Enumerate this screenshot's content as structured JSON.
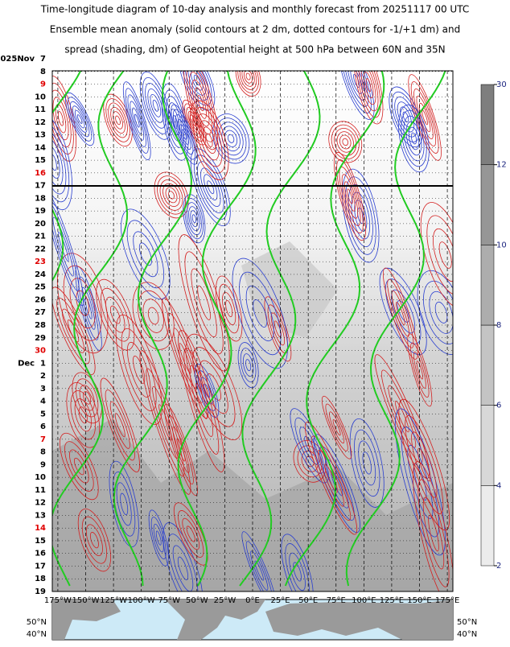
{
  "chart_data": {
    "type": "hovmoller",
    "title_lines": [
      "Time-longitude diagram of 10-day analysis and monthly forecast from 20251117 00 UTC",
      "Ensemble mean anomaly (solid contours at 2 dm, dotted contours for -1/+1 dm) and",
      "spread (shading, dm) of Geopotential height at 500 hPa between 60N and 35N"
    ],
    "rows": [
      {
        "label": "2025Nov  7",
        "color": "#000000"
      },
      {
        "label": "8",
        "color": "#000000"
      },
      {
        "label": "9",
        "color": "#e00000"
      },
      {
        "label": "10",
        "color": "#000000"
      },
      {
        "label": "11",
        "color": "#000000"
      },
      {
        "label": "12",
        "color": "#000000"
      },
      {
        "label": "13",
        "color": "#000000"
      },
      {
        "label": "14",
        "color": "#000000"
      },
      {
        "label": "15",
        "color": "#000000"
      },
      {
        "label": "16",
        "color": "#e00000"
      },
      {
        "label": "17",
        "color": "#000000"
      },
      {
        "label": "18",
        "color": "#000000"
      },
      {
        "label": "19",
        "color": "#000000"
      },
      {
        "label": "20",
        "color": "#000000"
      },
      {
        "label": "21",
        "color": "#000000"
      },
      {
        "label": "22",
        "color": "#000000"
      },
      {
        "label": "23",
        "color": "#e00000"
      },
      {
        "label": "24",
        "color": "#000000"
      },
      {
        "label": "25",
        "color": "#000000"
      },
      {
        "label": "26",
        "color": "#000000"
      },
      {
        "label": "27",
        "color": "#000000"
      },
      {
        "label": "28",
        "color": "#000000"
      },
      {
        "label": "29",
        "color": "#000000"
      },
      {
        "label": "30",
        "color": "#e00000"
      },
      {
        "label": "Dec  1",
        "color": "#000000"
      },
      {
        "label": "2",
        "color": "#000000"
      },
      {
        "label": "3",
        "color": "#000000"
      },
      {
        "label": "4",
        "color": "#000000"
      },
      {
        "label": "5",
        "color": "#000000"
      },
      {
        "label": "6",
        "color": "#000000"
      },
      {
        "label": "7",
        "color": "#e00000"
      },
      {
        "label": "8",
        "color": "#000000"
      },
      {
        "label": "9",
        "color": "#000000"
      },
      {
        "label": "10",
        "color": "#000000"
      },
      {
        "label": "11",
        "color": "#000000"
      },
      {
        "label": "12",
        "color": "#000000"
      },
      {
        "label": "13",
        "color": "#000000"
      },
      {
        "label": "14",
        "color": "#e00000"
      },
      {
        "label": "15",
        "color": "#000000"
      },
      {
        "label": "16",
        "color": "#000000"
      },
      {
        "label": "17",
        "color": "#000000"
      },
      {
        "label": "18",
        "color": "#000000"
      },
      {
        "label": "19",
        "color": "#000000"
      }
    ],
    "xlim": [
      -180,
      180
    ],
    "xticks": [
      {
        "value": -175,
        "label": "175°W"
      },
      {
        "value": -150,
        "label": "150°W"
      },
      {
        "value": -125,
        "label": "125°W"
      },
      {
        "value": -100,
        "label": "100°W"
      },
      {
        "value": -75,
        "label": "75°W"
      },
      {
        "value": -50,
        "label": "50°W"
      },
      {
        "value": -25,
        "label": "25°W"
      },
      {
        "value": 0,
        "label": "0°E"
      },
      {
        "value": 25,
        "label": "25°E"
      },
      {
        "value": 50,
        "label": "50°E"
      },
      {
        "value": 75,
        "label": "75°E"
      },
      {
        "value": 100,
        "label": "100°E"
      },
      {
        "value": 125,
        "label": "125°E"
      },
      {
        "value": 150,
        "label": "150°E"
      },
      {
        "value": 175,
        "label": "175°E"
      }
    ],
    "colorbar": {
      "levels": [
        2,
        4,
        6,
        8,
        10,
        12,
        30
      ],
      "colors": [
        "#ececec",
        "#d8d8d8",
        "#c4c4c4",
        "#adadad",
        "#969696",
        "#7e7e7e"
      ]
    },
    "map_labels": [
      "50°N",
      "40°N"
    ]
  }
}
